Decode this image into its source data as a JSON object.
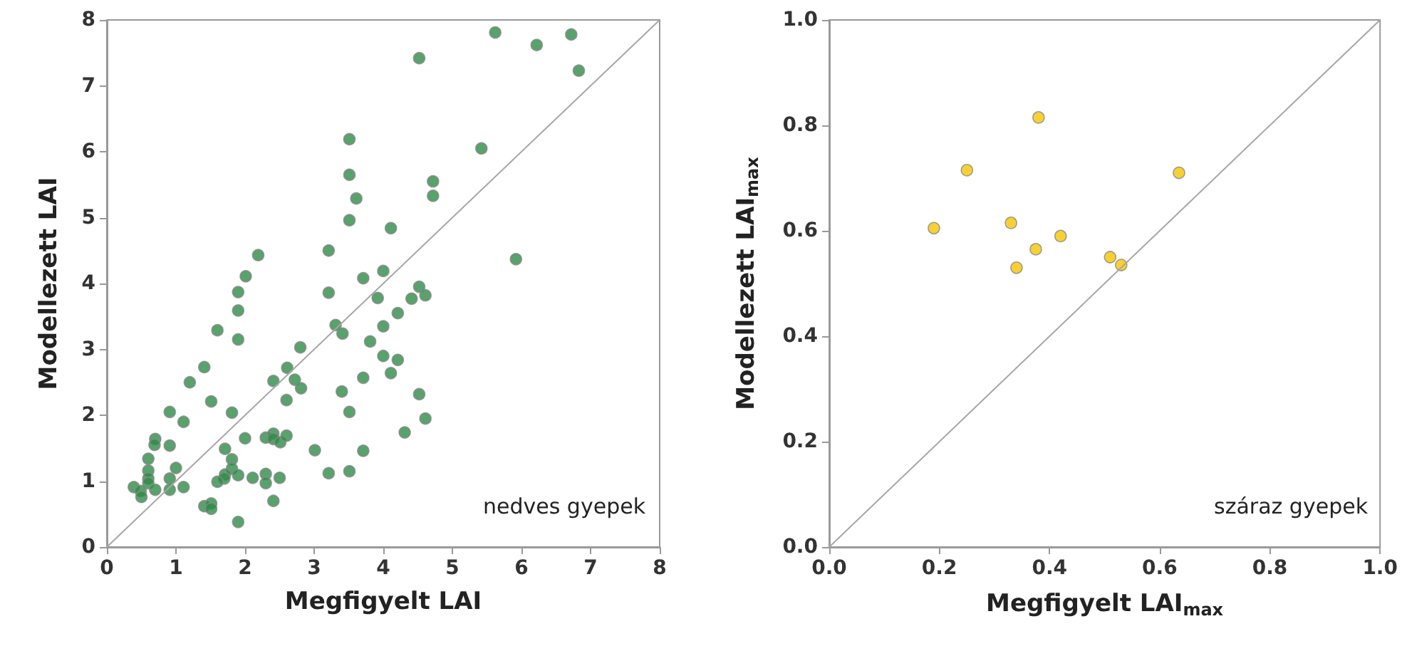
{
  "chart_data": [
    {
      "type": "scatter",
      "xlabel": "Megfigyelt LAI",
      "ylabel": "Modellezett LAI",
      "xlim": [
        0,
        8
      ],
      "ylim": [
        0,
        8
      ],
      "xticks": [
        0,
        1,
        2,
        3,
        4,
        5,
        6,
        7,
        8
      ],
      "yticks": [
        0,
        1,
        2,
        3,
        4,
        5,
        6,
        7,
        8
      ],
      "marker": "circle",
      "grid": false,
      "annotations": [
        "nedves gyepek"
      ],
      "series": [
        {
          "color": "#2e8b47",
          "x": [
            2.19,
            3.21,
            2.01,
            1.9,
            1.9,
            3.71,
            4.0,
            3.21,
            3.92,
            1.6,
            1.9,
            3.31,
            3.41,
            4.0,
            3.81,
            4.0,
            2.8,
            1.41,
            2.61,
            1.2,
            2.41,
            2.72,
            2.81,
            1.51,
            2.6,
            3.71,
            3.4,
            3.51,
            0.91,
            1.81,
            1.11,
            0.7,
            0.69,
            0.91,
            0.6,
            1.0,
            0.6,
            0.91,
            0.6,
            0.6,
            0.39,
            0.49,
            0.5,
            0.7,
            0.91,
            1.11,
            1.71,
            1.81,
            1.81,
            1.71,
            1.7,
            1.6,
            1.9,
            2.0,
            2.11,
            2.3,
            2.41,
            2.41,
            2.51,
            2.6,
            2.3,
            2.3,
            2.5,
            2.41,
            1.41,
            1.51,
            1.51,
            1.9,
            3.01,
            3.21,
            3.51,
            3.71,
            3.51,
            3.51,
            3.61,
            3.51,
            4.11,
            5.42,
            4.72,
            4.72,
            4.52,
            4.41,
            4.61,
            4.21,
            4.21,
            4.11,
            4.52,
            4.61,
            4.31,
            5.62,
            6.22,
            6.72,
            6.83,
            5.92,
            4.52
          ],
          "values": [
            4.43,
            4.5,
            4.11,
            3.87,
            3.59,
            4.08,
            4.19,
            3.86,
            3.78,
            3.29,
            3.15,
            3.37,
            3.24,
            3.35,
            3.12,
            2.9,
            3.03,
            2.73,
            2.72,
            2.5,
            2.52,
            2.54,
            2.41,
            2.21,
            2.23,
            2.57,
            2.36,
            2.05,
            2.05,
            2.04,
            1.9,
            1.64,
            1.55,
            1.54,
            1.34,
            1.2,
            1.16,
            1.04,
            1.04,
            0.97,
            0.91,
            0.85,
            0.76,
            0.87,
            0.87,
            0.91,
            1.49,
            1.33,
            1.19,
            1.1,
            1.04,
            0.99,
            1.09,
            1.65,
            1.05,
            1.66,
            1.72,
            1.64,
            1.59,
            1.69,
            1.11,
            0.97,
            1.05,
            0.7,
            0.62,
            0.66,
            0.58,
            0.38,
            1.47,
            1.12,
            1.15,
            1.46,
            6.19,
            5.65,
            5.29,
            4.96,
            4.84,
            6.05,
            5.55,
            5.33,
            3.95,
            3.77,
            3.82,
            3.55,
            2.84,
            2.64,
            2.32,
            1.95,
            1.74,
            7.81,
            7.62,
            7.78,
            7.23,
            4.37,
            7.42
          ]
        },
        {
          "type": "line",
          "color": "#a6a6a6",
          "marker": "none",
          "x": [
            0,
            8
          ],
          "values": [
            0,
            8
          ]
        }
      ]
    },
    {
      "type": "scatter",
      "xlabel": "Megfigyelt LAI$_{max}$",
      "ylabel": "Modellezett LAI$_{max}$",
      "xlim": [
        0,
        1
      ],
      "ylim": [
        0,
        1
      ],
      "xticks": [
        {
          "value": 0,
          "label": "0.0"
        },
        {
          "value": 0.2,
          "label": "0.2"
        },
        {
          "value": 0.4,
          "label": "0.4"
        },
        {
          "value": 0.6,
          "label": "0.6"
        },
        {
          "value": 0.8,
          "label": "0.8"
        },
        {
          "value": 1,
          "label": "1.0"
        }
      ],
      "yticks": [
        {
          "value": 0,
          "label": "0.0"
        },
        {
          "value": 0.2,
          "label": "0.2"
        },
        {
          "value": 0.4,
          "label": "0.4"
        },
        {
          "value": 0.6,
          "label": "0.6"
        },
        {
          "value": 0.8,
          "label": "0.8"
        },
        {
          "value": 1,
          "label": "1.0"
        }
      ],
      "marker": "circle",
      "grid": false,
      "annotations": [
        "száraz gyepek"
      ],
      "series": [
        {
          "color": "#f5c400",
          "x": [
            0.19,
            0.25,
            0.33,
            0.34,
            0.375,
            0.38,
            0.42,
            0.51,
            0.53,
            0.635
          ],
          "values": [
            0.605,
            0.715,
            0.615,
            0.53,
            0.565,
            0.815,
            0.59,
            0.55,
            0.535,
            0.71
          ]
        },
        {
          "type": "line",
          "color": "#a6a6a6",
          "marker": "none",
          "x": [
            0,
            1
          ],
          "values": [
            0,
            1
          ]
        }
      ]
    }
  ]
}
